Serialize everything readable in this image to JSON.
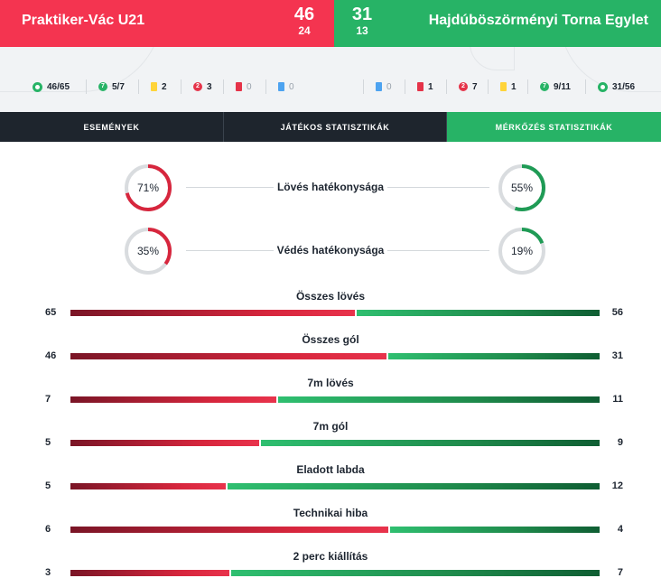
{
  "header": {
    "home_team": "Praktiker-Vác U21",
    "away_team": "Hajdúböszörményi Torna Egylet",
    "home_score": "46",
    "home_half": "24",
    "away_score": "31",
    "away_half": "13",
    "home_color": "#f43450",
    "away_color": "#27b366"
  },
  "summary": {
    "home": [
      {
        "icon": "goal-ball-icon",
        "value": "46/65"
      },
      {
        "icon": "penalty-icon",
        "value": "5/7"
      },
      {
        "icon": "yellow-card-icon",
        "value": "2"
      },
      {
        "icon": "suspension-icon",
        "value": "3"
      },
      {
        "icon": "red-card-icon",
        "value": "0"
      },
      {
        "icon": "blue-card-icon",
        "value": "0"
      }
    ],
    "away": [
      {
        "icon": "blue-card-icon",
        "value": "0"
      },
      {
        "icon": "red-card-icon",
        "value": "1"
      },
      {
        "icon": "suspension-icon",
        "value": "7"
      },
      {
        "icon": "yellow-card-icon",
        "value": "1"
      },
      {
        "icon": "penalty-icon",
        "value": "9/11"
      },
      {
        "icon": "goal-ball-icon",
        "value": "31/56"
      }
    ]
  },
  "tabs": [
    {
      "label": "ESEMÉNYEK",
      "active": false
    },
    {
      "label": "JÁTÉKOS STATISZTIKÁK",
      "active": false
    },
    {
      "label": "MÉRKŐZÉS STATISZTIKÁK",
      "active": true
    }
  ],
  "efficiency": [
    {
      "title": "Lövés hatékonysága",
      "home_pct": 71,
      "away_pct": 55,
      "home_label": "71%",
      "away_label": "55%"
    },
    {
      "title": "Védés hatékonysága",
      "home_pct": 35,
      "away_pct": 19,
      "home_label": "35%",
      "away_label": "19%"
    }
  ],
  "stats": [
    {
      "title": "Összes lövés",
      "home": 65,
      "away": 56
    },
    {
      "title": "Összes gól",
      "home": 46,
      "away": 31
    },
    {
      "title": "7m lövés",
      "home": 7,
      "away": 11
    },
    {
      "title": "7m gól",
      "home": 5,
      "away": 9
    },
    {
      "title": "Eladott labda",
      "home": 5,
      "away": 12
    },
    {
      "title": "Technikai hiba",
      "home": 6,
      "away": 4
    },
    {
      "title": "2 perc kiállítás",
      "home": 3,
      "away": 7
    }
  ]
}
